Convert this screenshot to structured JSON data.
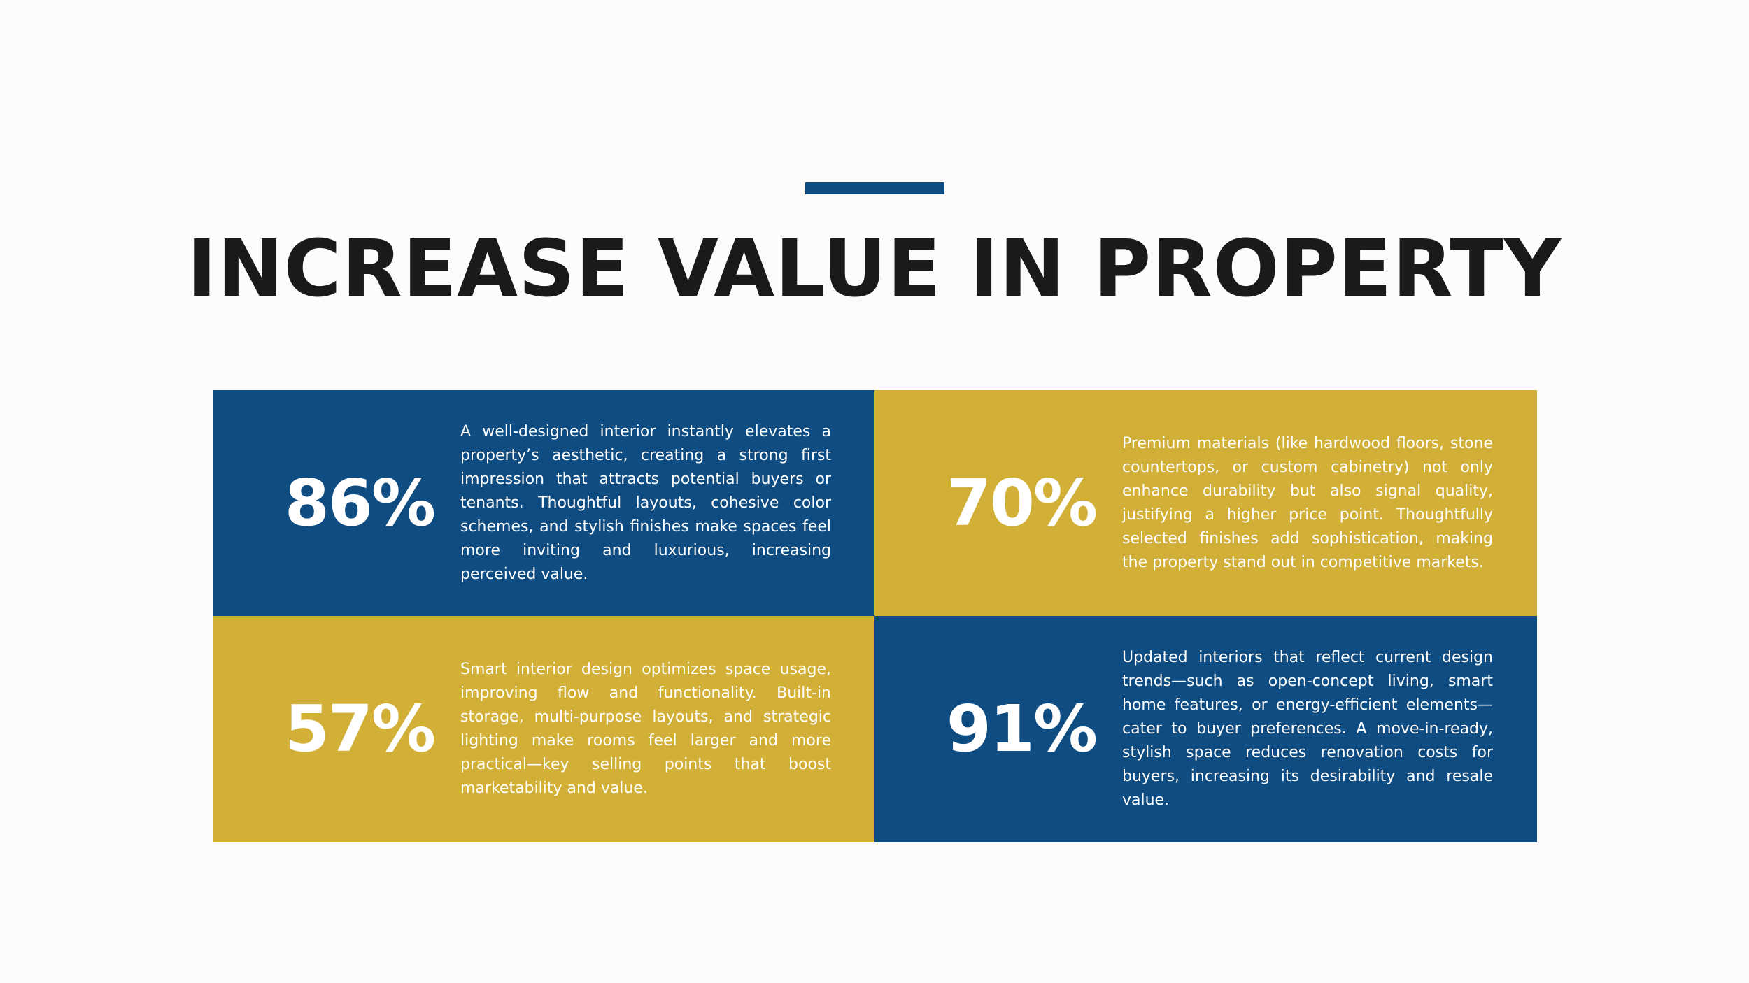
{
  "page": {
    "title": "INCREASE VALUE IN PROPERTY",
    "colors": {
      "background": "#FDFCFA",
      "blue": "#0F4C81",
      "gold": "#D2AF36",
      "title": "#1A1A1A",
      "text": "#FFFFFF"
    }
  },
  "stats": [
    {
      "value": "86%",
      "color": "blue",
      "text": "A well-designed interior instantly elevates a property’s aesthetic, creating a strong first impression that attracts potential buyers or tenants. Thoughtful layouts, cohesive color schemes, and stylish finishes make spaces feel more inviting and luxurious, increasing perceived value."
    },
    {
      "value": "70%",
      "color": "gold",
      "text": "Premium materials (like hardwood floors, stone countertops, or custom cabinetry) not only enhance durability but also signal quality, justifying a higher price point. Thoughtfully selected finishes add sophistication, making the property stand out in competitive markets."
    },
    {
      "value": "57%",
      "color": "gold",
      "text": "Smart interior design optimizes space usage, improving flow and functionality. Built-in storage, multi-purpose layouts, and strategic lighting make rooms feel larger and more practical—key selling points that boost marketability and value."
    },
    {
      "value": "91%",
      "color": "blue",
      "text": "Updated interiors that reflect current design trends—such as open-concept living, smart home features, or energy-efficient elements—cater to buyer preferences. A move-in-ready, stylish space reduces renovation costs for buyers, increasing its desirability and resale value."
    }
  ]
}
